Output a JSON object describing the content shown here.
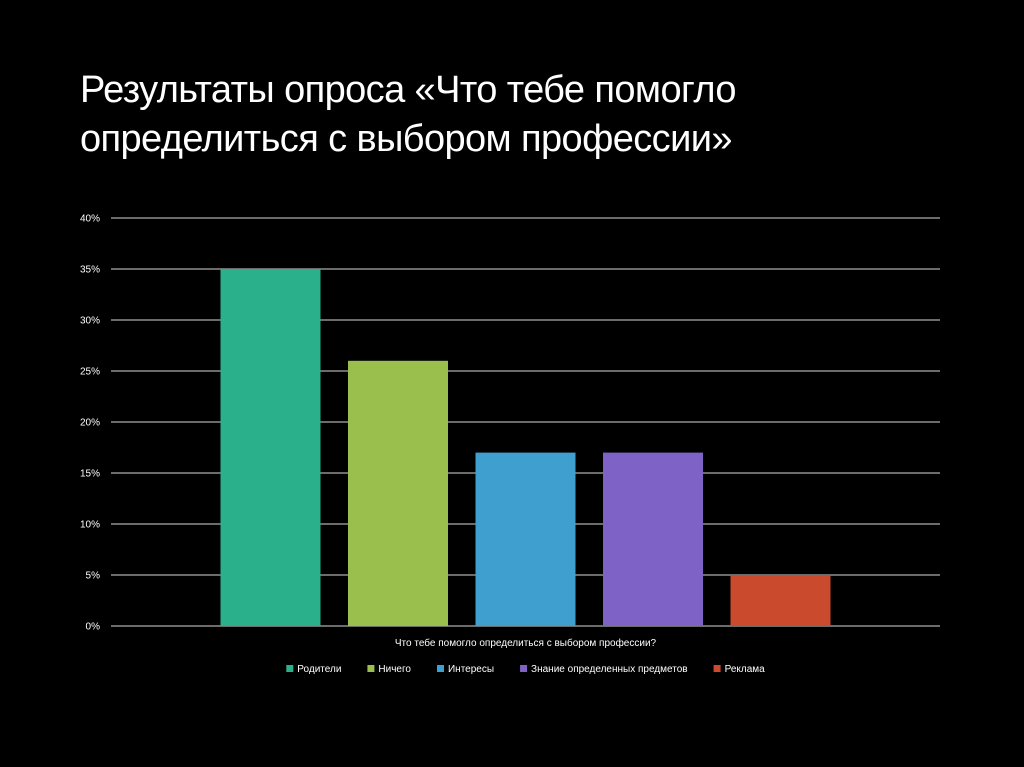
{
  "slide": {
    "title": "Результаты опроса «Что тебе помогло определиться с выбором профессии»"
  },
  "chart_data": {
    "type": "bar",
    "title": "",
    "xlabel": "Что тебе помогло определиться с выбором профессии?",
    "ylabel": "",
    "ylim": [
      0,
      40
    ],
    "yticks": [
      0,
      5,
      10,
      15,
      20,
      25,
      30,
      35,
      40
    ],
    "ytick_labels": [
      "0%",
      "5%",
      "10%",
      "15%",
      "20%",
      "25%",
      "30%",
      "35%",
      "40%"
    ],
    "grid": true,
    "legend_position": "bottom",
    "background": "#000000",
    "series": [
      {
        "name": "Родители",
        "values": [
          35
        ],
        "color": "#2BB08C"
      },
      {
        "name": "Ничего",
        "values": [
          26
        ],
        "color": "#9BBF4D"
      },
      {
        "name": "Интересы",
        "values": [
          17
        ],
        "color": "#3FA0CF"
      },
      {
        "name": "Знание определенных предметов",
        "values": [
          17
        ],
        "color": "#7E62C6"
      },
      {
        "name": "Реклама",
        "values": [
          5
        ],
        "color": "#C94A2C"
      }
    ]
  }
}
